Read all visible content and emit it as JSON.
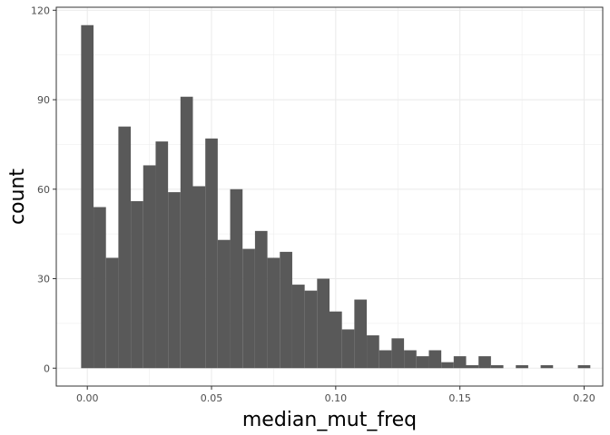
{
  "chart_data": {
    "type": "bar",
    "xlabel": "median_mut_freq",
    "ylabel": "count",
    "xlim": [
      -0.0125,
      0.2075
    ],
    "ylim": [
      -6,
      121
    ],
    "grid": true,
    "x_ticks": [
      {
        "value": 0.0,
        "label": "0.00"
      },
      {
        "value": 0.05,
        "label": "0.05"
      },
      {
        "value": 0.1,
        "label": "0.10"
      },
      {
        "value": 0.15,
        "label": "0.15"
      },
      {
        "value": 0.2,
        "label": "0.20"
      }
    ],
    "y_ticks": [
      {
        "value": 0,
        "label": "0"
      },
      {
        "value": 30,
        "label": "30"
      },
      {
        "value": 60,
        "label": "60"
      },
      {
        "value": 90,
        "label": "90"
      },
      {
        "value": 120,
        "label": "120"
      }
    ],
    "bin_width": 0.005,
    "bin_centers": [
      0.0,
      0.005,
      0.01,
      0.015,
      0.02,
      0.025,
      0.03,
      0.035,
      0.04,
      0.045,
      0.05,
      0.055,
      0.06,
      0.065,
      0.07,
      0.075,
      0.08,
      0.085,
      0.09,
      0.095,
      0.1,
      0.105,
      0.11,
      0.115,
      0.12,
      0.125,
      0.13,
      0.135,
      0.14,
      0.145,
      0.15,
      0.155,
      0.16,
      0.165,
      0.17,
      0.175,
      0.18,
      0.185,
      0.19,
      0.195,
      0.2
    ],
    "values": [
      115,
      54,
      37,
      81,
      56,
      68,
      76,
      59,
      91,
      61,
      77,
      43,
      60,
      40,
      46,
      37,
      39,
      28,
      26,
      30,
      19,
      13,
      23,
      11,
      6,
      10,
      6,
      4,
      6,
      2,
      4,
      1,
      4,
      1,
      0,
      1,
      0,
      1,
      0,
      0,
      1
    ],
    "bar_color": "#595959",
    "grid_color": "#ebebeb",
    "panel_border_color": "#333333"
  }
}
